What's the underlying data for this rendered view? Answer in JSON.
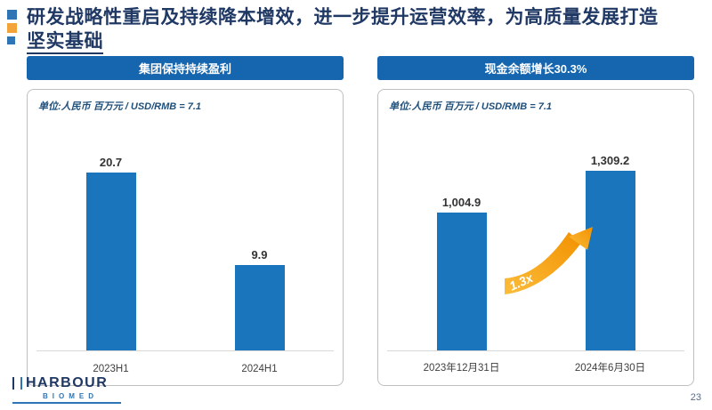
{
  "slide": {
    "title_line1": "研发战略性重启及持续降本增效，进一步提升运营效率，为高质量发展打造",
    "title_line2": "坚实基础",
    "page_number": "23"
  },
  "logo": {
    "name": "HARBOUR",
    "sub": "BIOMED"
  },
  "colors": {
    "title_navy": "#1F3864",
    "header_bar_blue": "#1565AF",
    "bar_blue": "#1B75BC",
    "arrow_orange": "#F5A623",
    "bullet_blue": "#2E75B6",
    "bullet_orange": "#F2A33A"
  },
  "chart_data": [
    {
      "type": "bar",
      "title": "集团保持持续盈利",
      "unit_note": "单位:人民币 百万元 / USD/RMB = 7.1",
      "categories": [
        "2023H1",
        "2024H1"
      ],
      "values": [
        20.7,
        9.9
      ],
      "labels": [
        "20.7",
        "9.9"
      ],
      "bar_color": "#1B75BC",
      "ylim": [
        0,
        20.7
      ],
      "grid": false,
      "legend": "none"
    },
    {
      "type": "bar",
      "title": "现金余额增长30.3%",
      "unit_note": "单位:人民币 百万元 / USD/RMB = 7.1",
      "categories": [
        "2023年12月31日",
        "2024年6月30日"
      ],
      "values": [
        1004.9,
        1309.2
      ],
      "labels": [
        "1,004.9",
        "1,309.2"
      ],
      "annotation": "1.3x",
      "bar_color": "#1B75BC",
      "ylim": [
        0,
        1309.2
      ],
      "grid": false,
      "legend": "none"
    }
  ]
}
